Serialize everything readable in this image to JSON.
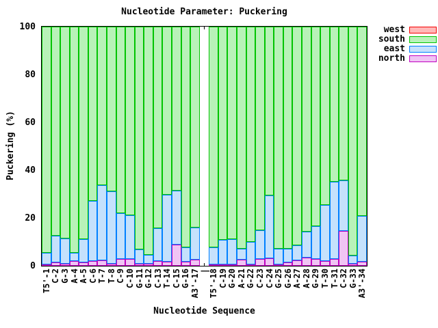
{
  "chart_data": {
    "type": "bar",
    "subtype": "stacked",
    "title": "Nucleotide Parameter: Puckering",
    "xlabel": "Nucleotide Sequence",
    "ylabel": "Puckering (%)",
    "ylim": [
      0,
      100
    ],
    "yticks": [
      0,
      20,
      40,
      60,
      80,
      100
    ],
    "grid": "off",
    "legend_position": "top-right-outside",
    "legend": [
      {
        "label": "west",
        "stroke": "#f40000",
        "fill": "#ffb8b8"
      },
      {
        "label": "south",
        "stroke": "#00c400",
        "fill": "#b8f2b8"
      },
      {
        "label": "east",
        "stroke": "#0080ff",
        "fill": "#c5e1fc"
      },
      {
        "label": "north",
        "stroke": "#c000c0",
        "fill": "#f0c4f4"
      }
    ],
    "gap_category": "|",
    "categories": [
      "T5'-1",
      "C-2",
      "G-3",
      "A-4",
      "A-5",
      "C-6",
      "T-7",
      "T-8",
      "C-9",
      "C-10",
      "G-11",
      "G-12",
      "C-13",
      "T-14",
      "C-15",
      "G-16",
      "A3'-17",
      "|",
      "T5'-18",
      "C-19",
      "G-20",
      "A-21",
      "G-22",
      "C-23",
      "C-24",
      "G-25",
      "G-26",
      "A-27",
      "A-28",
      "G-29",
      "T-30",
      "T-31",
      "C-32",
      "G-33",
      "A3'-34"
    ],
    "series": {
      "north": [
        0.6,
        1.4,
        1.0,
        2.0,
        1.5,
        2.1,
        2.3,
        0.8,
        2.9,
        2.9,
        0.9,
        0.8,
        2.0,
        1.8,
        8.9,
        1.6,
        2.5,
        null,
        0.6,
        0.6,
        0.5,
        2.7,
        0.6,
        2.8,
        3.2,
        0.5,
        1.3,
        2.3,
        3.4,
        2.8,
        2.0,
        2.9,
        14.5,
        0.9,
        1.7
      ],
      "east": [
        4.8,
        11.2,
        10.5,
        3.3,
        9.6,
        25.0,
        31.4,
        30.3,
        19.1,
        18.2,
        6.0,
        3.9,
        13.6,
        27.9,
        22.4,
        6.1,
        13.6,
        null,
        7.1,
        10.3,
        10.6,
        4.4,
        9.4,
        12.2,
        26.3,
        6.7,
        5.8,
        6.4,
        10.8,
        13.8,
        23.5,
        32.2,
        21.3,
        3.5,
        19.2
      ],
      "south": [
        94.6,
        87.4,
        88.5,
        94.7,
        88.9,
        72.9,
        66.3,
        68.9,
        78.0,
        78.9,
        93.1,
        95.3,
        84.4,
        70.3,
        68.7,
        92.3,
        83.9,
        null,
        92.3,
        89.1,
        88.9,
        92.9,
        90.0,
        85.0,
        70.5,
        92.8,
        92.9,
        91.3,
        85.8,
        83.4,
        74.5,
        64.9,
        64.2,
        95.6,
        79.1
      ],
      "west": [
        0,
        0,
        0,
        0,
        0,
        0,
        0,
        0,
        0,
        0,
        0,
        0,
        0,
        0,
        0,
        0,
        0,
        null,
        0,
        0,
        0,
        0,
        0,
        0,
        0,
        0,
        0,
        0,
        0,
        0,
        0,
        0,
        0,
        0,
        0
      ]
    }
  }
}
